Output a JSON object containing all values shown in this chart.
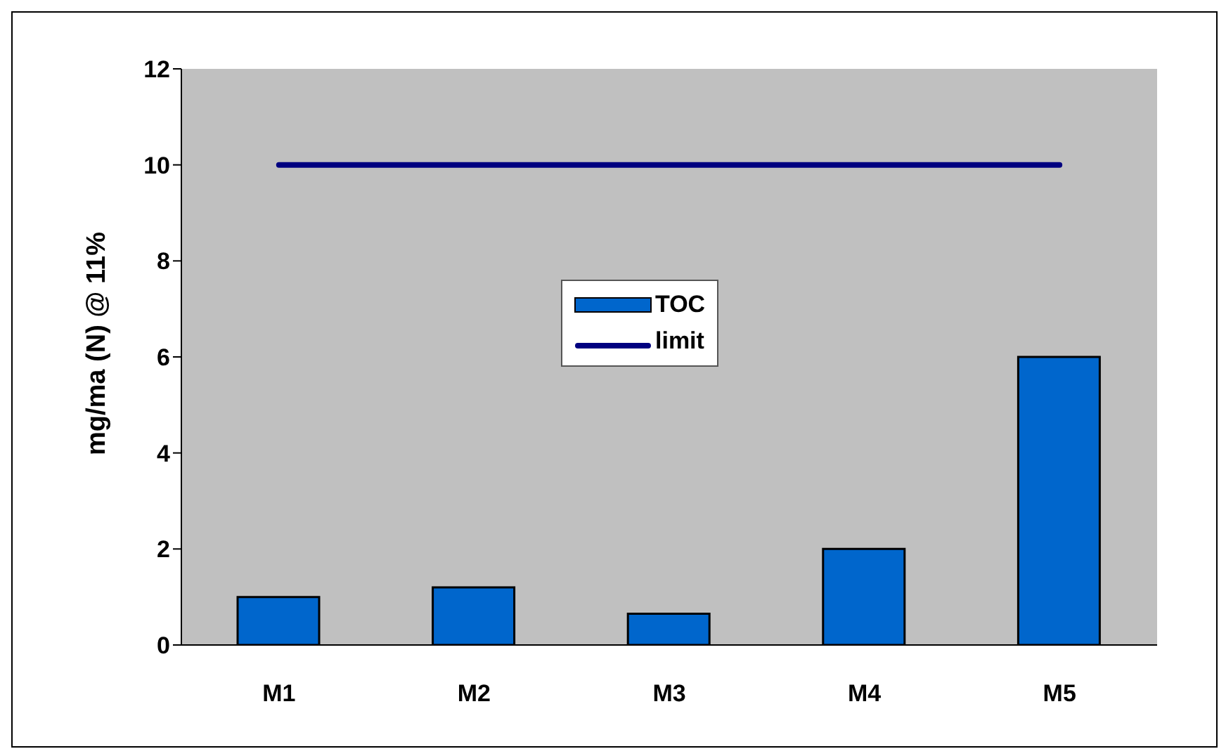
{
  "chart_data": {
    "type": "bar",
    "ylabel": "mg/ma (N) @ 11%",
    "categories": [
      "M1",
      "M2",
      "M3",
      "M4",
      "M5"
    ],
    "series": [
      {
        "name": "TOC",
        "color": "#0066cc",
        "values": [
          1.0,
          1.2,
          0.65,
          2.0,
          6.0
        ]
      },
      {
        "name": "limit",
        "type": "line",
        "color": "#000080",
        "values": [
          10,
          10,
          10,
          10,
          10
        ]
      }
    ],
    "ylim": [
      0,
      12
    ],
    "yticks": [
      0,
      2,
      4,
      6,
      8,
      10,
      12
    ],
    "grid": false,
    "legend": "center",
    "marker": "none"
  }
}
